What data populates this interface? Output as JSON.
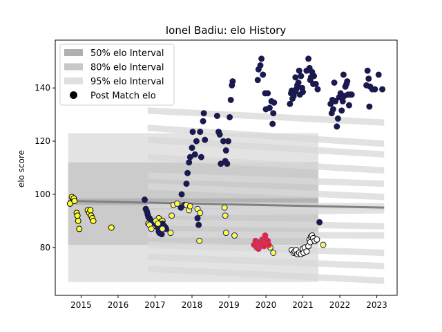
{
  "chart_data": {
    "type": "scatter",
    "title": "Ionel Badiu: elo History",
    "xlabel": "",
    "ylabel": "elo score",
    "xlim": [
      2014.3,
      2023.55
    ],
    "ylim": [
      62,
      158
    ],
    "xticks": [
      2015,
      2016,
      2017,
      2018,
      2019,
      2020,
      2021,
      2022,
      2023
    ],
    "xtick_labels": [
      "2015",
      "2016",
      "2017",
      "2018",
      "2019",
      "2020",
      "2021",
      "2022",
      "2023"
    ],
    "yticks": [
      80,
      100,
      120,
      140
    ],
    "ytick_labels": [
      "80",
      "100",
      "120",
      "140"
    ],
    "grid": false,
    "legend_position": "top-left",
    "legend": [
      {
        "label": "50% elo Interval",
        "kind": "band",
        "color": "#b0b0b0"
      },
      {
        "label": "80% elo Interval",
        "kind": "band",
        "color": "#c8c8c8"
      },
      {
        "label": "95% elo Interval",
        "kind": "band",
        "color": "#e0e0e0"
      },
      {
        "label": "Post Match elo",
        "kind": "marker",
        "color": "#000000"
      }
    ],
    "intervals": {
      "x_start": 2014.65,
      "x_end": 2021.42,
      "center": 97,
      "i50": [
        96,
        98.5
      ],
      "i80": [
        81,
        112
      ],
      "i95": [
        67,
        123
      ]
    },
    "mean_line": {
      "color": "#808080",
      "x": [
        2014.65,
        2023.2
      ],
      "y": [
        97.5,
        95
      ]
    },
    "forecast_lines": [
      {
        "x": [
          2016.8,
          2023.2
        ],
        "y": [
          131.5,
          127
        ]
      },
      {
        "x": [
          2016.8,
          2023.2
        ],
        "y": [
          125,
          119
        ]
      },
      {
        "x": [
          2016.8,
          2023.2
        ],
        "y": [
          120.5,
          115
        ]
      },
      {
        "x": [
          2016.8,
          2023.2
        ],
        "y": [
          114,
          109
        ]
      },
      {
        "x": [
          2016.8,
          2023.2
        ],
        "y": [
          107,
          104
        ]
      },
      {
        "x": [
          2016.8,
          2023.2
        ],
        "y": [
          103,
          99
        ]
      },
      {
        "x": [
          2016.8,
          2023.2
        ],
        "y": [
          96,
          95.5
        ]
      },
      {
        "x": [
          2016.8,
          2023.2
        ],
        "y": [
          93,
          94
        ]
      },
      {
        "x": [
          2016.8,
          2023.2
        ],
        "y": [
          89.5,
          88
        ]
      },
      {
        "x": [
          2016.8,
          2023.2
        ],
        "y": [
          85,
          84.5
        ]
      },
      {
        "x": [
          2016.8,
          2023.2
        ],
        "y": [
          81,
          78
        ]
      },
      {
        "x": [
          2016.8,
          2023.2
        ],
        "y": [
          76.5,
          73
        ]
      },
      {
        "x": [
          2016.8,
          2023.2
        ],
        "y": [
          72,
          67.5
        ]
      }
    ],
    "series": [
      {
        "color": "#ffff33",
        "edge": "#000000",
        "points": [
          [
            2014.7,
            96.5
          ],
          [
            2014.75,
            99
          ],
          [
            2014.8,
            98.5
          ],
          [
            2014.82,
            97.5
          ],
          [
            2014.88,
            93
          ],
          [
            2014.9,
            92
          ],
          [
            2014.92,
            90
          ],
          [
            2014.95,
            87
          ],
          [
            2015.18,
            94
          ],
          [
            2015.22,
            93
          ],
          [
            2015.25,
            94
          ],
          [
            2015.27,
            92
          ],
          [
            2015.3,
            91
          ],
          [
            2015.33,
            90
          ],
          [
            2015.82,
            87.5
          ],
          [
            2016.82,
            89
          ],
          [
            2016.95,
            88
          ],
          [
            2017.05,
            90
          ],
          [
            2017.1,
            91
          ],
          [
            2017.15,
            89.5
          ],
          [
            2017.2,
            90
          ],
          [
            2017.25,
            88
          ],
          [
            2017.28,
            87.5
          ]
        ]
      },
      {
        "color": "#1a1a4e",
        "edge": "#1a1a4e",
        "points": [
          [
            2016.72,
            98
          ],
          [
            2016.75,
            94.5
          ],
          [
            2016.78,
            93.5
          ],
          [
            2016.8,
            92.5
          ],
          [
            2016.82,
            91.5
          ],
          [
            2016.85,
            91
          ],
          [
            2016.9,
            90
          ],
          [
            2017.0,
            89
          ],
          [
            2017.05,
            88.5
          ],
          [
            2017.08,
            87.5
          ],
          [
            2017.1,
            86
          ],
          [
            2017.12,
            85.5
          ],
          [
            2017.15,
            86
          ],
          [
            2017.18,
            85
          ],
          [
            2017.2,
            89
          ],
          [
            2017.25,
            88
          ],
          [
            2017.3,
            87
          ],
          [
            2017.7,
            95
          ],
          [
            2017.72,
            100
          ],
          [
            2017.8,
            96
          ],
          [
            2017.85,
            104
          ],
          [
            2017.88,
            108
          ],
          [
            2017.92,
            112
          ],
          [
            2017.95,
            114
          ],
          [
            2018.0,
            117.5
          ],
          [
            2018.02,
            123.5
          ],
          [
            2018.08,
            115
          ],
          [
            2018.12,
            120
          ],
          [
            2018.15,
            91
          ],
          [
            2018.18,
            88.5
          ],
          [
            2018.22,
            123.5
          ],
          [
            2018.25,
            114
          ],
          [
            2018.3,
            127.5
          ],
          [
            2018.32,
            130.5
          ],
          [
            2018.35,
            120.5
          ],
          [
            2018.68,
            129.5
          ],
          [
            2018.72,
            123.5
          ],
          [
            2018.75,
            122.5
          ],
          [
            2018.78,
            111.5
          ],
          [
            2018.85,
            120
          ],
          [
            2018.9,
            112.5
          ],
          [
            2018.92,
            116.5
          ],
          [
            2018.95,
            111.5
          ],
          [
            2018.98,
            120
          ],
          [
            2019.02,
            129
          ],
          [
            2019.05,
            135.5
          ],
          [
            2019.08,
            141
          ],
          [
            2019.1,
            142.5
          ],
          [
            2019.78,
            143
          ],
          [
            2019.8,
            147
          ],
          [
            2019.85,
            148.5
          ],
          [
            2019.88,
            151
          ],
          [
            2019.92,
            145
          ],
          [
            2019.98,
            138
          ],
          [
            2020.0,
            132
          ],
          [
            2020.05,
            138
          ],
          [
            2020.1,
            132.5
          ],
          [
            2020.15,
            135
          ],
          [
            2020.18,
            126.5
          ],
          [
            2020.2,
            130.5
          ],
          [
            2020.22,
            134.5
          ],
          [
            2020.65,
            134
          ],
          [
            2020.68,
            138
          ],
          [
            2020.7,
            139
          ],
          [
            2020.72,
            136
          ],
          [
            2020.75,
            137
          ],
          [
            2020.78,
            138.5
          ],
          [
            2020.8,
            144
          ],
          [
            2020.82,
            139.5
          ],
          [
            2020.85,
            141
          ],
          [
            2020.88,
            142
          ],
          [
            2020.9,
            146.5
          ],
          [
            2020.92,
            137.5
          ],
          [
            2020.95,
            144.5
          ],
          [
            2020.98,
            140
          ],
          [
            2021.0,
            138.5
          ],
          [
            2021.1,
            146.5
          ],
          [
            2021.15,
            151
          ],
          [
            2021.18,
            147.5
          ],
          [
            2021.2,
            143
          ],
          [
            2021.22,
            144
          ],
          [
            2021.25,
            146
          ],
          [
            2021.28,
            141.5
          ],
          [
            2021.3,
            144.5
          ],
          [
            2021.35,
            141.5
          ],
          [
            2021.4,
            139.5
          ],
          [
            2021.45,
            89.5
          ],
          [
            2021.75,
            134
          ],
          [
            2021.78,
            130.5
          ],
          [
            2021.8,
            135.5
          ],
          [
            2021.82,
            132
          ],
          [
            2021.85,
            142
          ],
          [
            2021.88,
            135
          ],
          [
            2021.92,
            125.5
          ],
          [
            2021.95,
            128.5
          ],
          [
            2021.98,
            136.5
          ],
          [
            2022.02,
            138
          ],
          [
            2022.05,
            131.5
          ],
          [
            2022.08,
            135
          ],
          [
            2022.1,
            145
          ],
          [
            2022.12,
            137
          ],
          [
            2022.15,
            140.5
          ],
          [
            2022.18,
            141.5
          ],
          [
            2022.2,
            142.5
          ],
          [
            2022.22,
            137.5
          ],
          [
            2022.25,
            133.5
          ],
          [
            2022.28,
            137.5
          ],
          [
            2022.32,
            137.5
          ],
          [
            2022.72,
            141
          ],
          [
            2022.75,
            146.5
          ],
          [
            2022.78,
            143.5
          ],
          [
            2022.8,
            133
          ],
          [
            2022.82,
            140.5
          ],
          [
            2022.88,
            139.5
          ],
          [
            2022.95,
            139.5
          ],
          [
            2023.05,
            145
          ],
          [
            2023.15,
            139.5
          ]
        ]
      },
      {
        "color": "#ffff33",
        "edge": "#1a1a9e",
        "points": [
          [
            2016.85,
            88.5
          ],
          [
            2016.9,
            87
          ],
          [
            2017.02,
            90
          ],
          [
            2017.08,
            89
          ],
          [
            2017.2,
            87
          ],
          [
            2017.42,
            85.5
          ],
          [
            2017.45,
            92
          ],
          [
            2017.5,
            96
          ],
          [
            2017.6,
            96.5
          ],
          [
            2017.85,
            96
          ],
          [
            2017.92,
            94
          ],
          [
            2017.95,
            95.5
          ],
          [
            2018.15,
            94.5
          ],
          [
            2018.2,
            82.5
          ],
          [
            2018.22,
            93
          ],
          [
            2018.88,
            95
          ],
          [
            2018.9,
            92
          ],
          [
            2018.92,
            85.5
          ],
          [
            2019.15,
            84.5
          ],
          [
            2020.12,
            80
          ],
          [
            2020.2,
            78
          ],
          [
            2021.55,
            81
          ]
        ]
      },
      {
        "color": "#ee2222",
        "edge": "#aa44aa",
        "points": [
          [
            2019.68,
            81
          ],
          [
            2019.72,
            82.5
          ],
          [
            2019.75,
            80
          ],
          [
            2019.78,
            81.5
          ],
          [
            2019.8,
            79.5
          ],
          [
            2019.82,
            82
          ],
          [
            2019.85,
            80.5
          ],
          [
            2019.88,
            81
          ],
          [
            2019.9,
            83
          ],
          [
            2019.92,
            82.5
          ],
          [
            2019.95,
            80.5
          ],
          [
            2019.98,
            84.5
          ],
          [
            2020.0,
            83
          ],
          [
            2020.02,
            82
          ],
          [
            2020.05,
            82.5
          ],
          [
            2020.08,
            81
          ]
        ]
      },
      {
        "color": "#ffffff",
        "edge": "#000000",
        "points": [
          [
            2020.7,
            79
          ],
          [
            2020.75,
            78
          ],
          [
            2020.78,
            78.5
          ],
          [
            2020.82,
            79
          ],
          [
            2020.85,
            77.5
          ],
          [
            2020.9,
            78
          ],
          [
            2020.95,
            77.5
          ],
          [
            2021.0,
            79.5
          ],
          [
            2021.02,
            78
          ],
          [
            2021.05,
            80
          ],
          [
            2021.1,
            78.5
          ],
          [
            2021.15,
            80.5
          ],
          [
            2021.18,
            83
          ],
          [
            2021.2,
            82
          ],
          [
            2021.22,
            84
          ],
          [
            2021.25,
            84.5
          ],
          [
            2021.28,
            83.5
          ],
          [
            2021.32,
            82.5
          ],
          [
            2021.38,
            83
          ]
        ]
      }
    ]
  }
}
